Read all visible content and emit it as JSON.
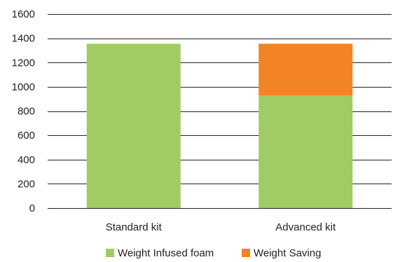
{
  "chart_data": {
    "type": "bar",
    "stacked": true,
    "title": "",
    "xlabel": "",
    "ylabel": "",
    "categories": [
      "Standard kit",
      "Advanced kit"
    ],
    "series": [
      {
        "name": "Weight Infused foam",
        "values": [
          1355,
          930
        ],
        "color": "#a0cc63"
      },
      {
        "name": "Weight Saving",
        "values": [
          0,
          425
        ],
        "color": "#f28426"
      }
    ],
    "ylim": [
      0,
      1600
    ],
    "yticks": [
      0,
      200,
      400,
      600,
      800,
      1000,
      1200,
      1400,
      1600
    ],
    "grid": true,
    "legend_position": "bottom"
  }
}
